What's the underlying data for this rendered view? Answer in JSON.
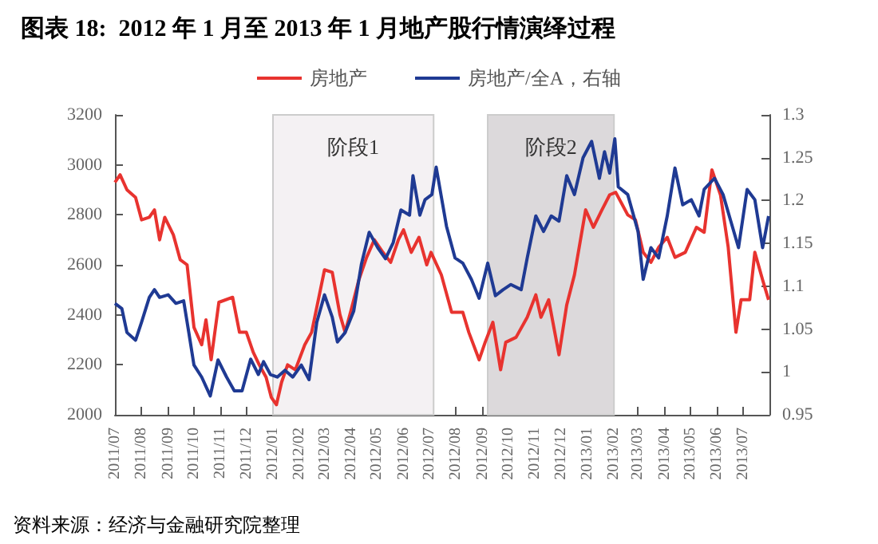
{
  "chart_data": {
    "type": "line",
    "title": "图表 18:  2012 年 1 月至 2013 年 1 月地产股行情演绎过程",
    "annotations": [
      "资料来源：经济与金融研究院整理"
    ],
    "legend": "top",
    "grid": false,
    "marker": "none",
    "line_style": "solid",
    "xlim": [
      "2011-07-01",
      "2013-08-01"
    ],
    "xticks": [
      {
        "value": "2011-07-01",
        "label": "2011/07"
      },
      {
        "value": "2011-08-01",
        "label": "2011/08"
      },
      {
        "value": "2011-09-01",
        "label": "2011/09"
      },
      {
        "value": "2011-10-01",
        "label": "2011/10"
      },
      {
        "value": "2011-11-01",
        "label": "2011/11"
      },
      {
        "value": "2011-12-01",
        "label": "2011/12"
      },
      {
        "value": "2012-01-01",
        "label": "2012/01"
      },
      {
        "value": "2012-02-01",
        "label": "2012/02"
      },
      {
        "value": "2012-03-01",
        "label": "2012/03"
      },
      {
        "value": "2012-04-01",
        "label": "2012/04"
      },
      {
        "value": "2012-05-01",
        "label": "2012/05"
      },
      {
        "value": "2012-06-01",
        "label": "2012/06"
      },
      {
        "value": "2012-07-01",
        "label": "2012/07"
      },
      {
        "value": "2012-08-01",
        "label": "2012/08"
      },
      {
        "value": "2012-09-01",
        "label": "2012/09"
      },
      {
        "value": "2012-10-01",
        "label": "2012/10"
      },
      {
        "value": "2012-11-01",
        "label": "2012/11"
      },
      {
        "value": "2012-12-01",
        "label": "2012/12"
      },
      {
        "value": "2013-01-01",
        "label": "2013/01"
      },
      {
        "value": "2013-02-01",
        "label": "2013/02"
      },
      {
        "value": "2013-03-01",
        "label": "2013/03"
      },
      {
        "value": "2013-04-01",
        "label": "2013/04"
      },
      {
        "value": "2013-05-01",
        "label": "2013/05"
      },
      {
        "value": "2013-06-01",
        "label": "2013/06"
      },
      {
        "value": "2013-07-01",
        "label": "2013/07"
      }
    ],
    "ylim": [
      2000,
      3200
    ],
    "yticks": [
      2000,
      2200,
      2400,
      2600,
      2800,
      3000,
      3200
    ],
    "y2lim": [
      0.95,
      1.3
    ],
    "y2ticks": [
      0.95,
      1,
      1.05,
      1.1,
      1.15,
      1.2,
      1.25,
      1.3
    ],
    "bands": [
      {
        "axis": "x",
        "from": "2012-01-01",
        "to": "2012-07-06",
        "label": "阶段1",
        "color": "#f4f1f3"
      },
      {
        "axis": "x",
        "from": "2012-09-07",
        "to": "2013-02-01",
        "label": "阶段2",
        "color": "#dcd9db"
      }
    ],
    "series": [
      {
        "name": "房地产",
        "color": "#e8332f",
        "x": [
          "2011-07-01",
          "2011-07-07",
          "2011-07-15",
          "2011-07-25",
          "2011-08-01",
          "2011-08-10",
          "2011-08-16",
          "2011-08-22",
          "2011-08-28",
          "2011-09-07",
          "2011-09-15",
          "2011-09-23",
          "2011-10-01",
          "2011-10-10",
          "2011-10-15",
          "2011-10-21",
          "2011-10-30",
          "2011-11-15",
          "2011-11-23",
          "2011-12-01",
          "2011-12-09",
          "2011-12-16",
          "2011-12-24",
          "2011-12-30",
          "2012-01-05",
          "2012-01-11",
          "2012-01-18",
          "2012-01-27",
          "2012-02-07",
          "2012-02-15",
          "2012-02-24",
          "2012-03-01",
          "2012-03-10",
          "2012-03-19",
          "2012-03-25",
          "2012-04-01",
          "2012-04-10",
          "2012-04-19",
          "2012-04-28",
          "2012-05-08",
          "2012-05-17",
          "2012-05-26",
          "2012-06-01",
          "2012-06-10",
          "2012-06-19",
          "2012-06-28",
          "2012-07-03",
          "2012-07-15",
          "2012-07-27",
          "2012-08-09",
          "2012-08-16",
          "2012-08-28",
          "2012-09-04",
          "2012-09-13",
          "2012-09-22",
          "2012-09-28",
          "2012-10-10",
          "2012-10-23",
          "2012-11-02",
          "2012-11-08",
          "2012-11-17",
          "2012-11-29",
          "2012-12-08",
          "2012-12-17",
          "2012-12-30",
          "2013-01-08",
          "2013-01-18",
          "2013-01-27",
          "2013-02-03",
          "2013-02-17",
          "2013-02-26",
          "2013-03-07",
          "2013-03-16",
          "2013-03-25",
          "2013-04-04",
          "2013-04-13",
          "2013-04-25",
          "2013-05-08",
          "2013-05-17",
          "2013-05-26",
          "2013-06-05",
          "2013-06-14",
          "2013-06-23",
          "2013-06-29",
          "2013-07-09",
          "2013-07-15",
          "2013-07-24",
          "2013-07-31"
        ],
        "values": [
          2930,
          2960,
          2900,
          2870,
          2780,
          2790,
          2820,
          2700,
          2790,
          2720,
          2620,
          2600,
          2350,
          2280,
          2380,
          2220,
          2450,
          2470,
          2330,
          2330,
          2250,
          2200,
          2150,
          2070,
          2040,
          2130,
          2200,
          2180,
          2280,
          2330,
          2480,
          2580,
          2570,
          2400,
          2330,
          2420,
          2540,
          2630,
          2700,
          2650,
          2610,
          2700,
          2740,
          2650,
          2710,
          2600,
          2650,
          2560,
          2410,
          2410,
          2330,
          2220,
          2290,
          2370,
          2180,
          2290,
          2310,
          2390,
          2480,
          2390,
          2460,
          2240,
          2440,
          2560,
          2820,
          2750,
          2820,
          2880,
          2890,
          2800,
          2780,
          2650,
          2610,
          2670,
          2710,
          2630,
          2650,
          2750,
          2730,
          2980,
          2880,
          2670,
          2330,
          2460,
          2460,
          2650,
          2540,
          2460
        ]
      },
      {
        "name": "房地产/全A，右轴",
        "color": "#1f3a93",
        "axis": "y2",
        "x": [
          "2011-07-01",
          "2011-07-09",
          "2011-07-15",
          "2011-07-25",
          "2011-08-01",
          "2011-08-10",
          "2011-08-16",
          "2011-08-22",
          "2011-09-01",
          "2011-09-10",
          "2011-09-19",
          "2011-09-25",
          "2011-10-01",
          "2011-10-10",
          "2011-10-20",
          "2011-10-29",
          "2011-11-08",
          "2011-11-17",
          "2011-11-26",
          "2011-12-06",
          "2011-12-15",
          "2011-12-21",
          "2011-12-29",
          "2012-01-06",
          "2012-01-15",
          "2012-01-24",
          "2012-02-03",
          "2012-02-12",
          "2012-02-21",
          "2012-03-01",
          "2012-03-10",
          "2012-03-16",
          "2012-03-25",
          "2012-04-04",
          "2012-04-13",
          "2012-04-22",
          "2012-05-02",
          "2012-05-11",
          "2012-05-20",
          "2012-05-29",
          "2012-06-08",
          "2012-06-12",
          "2012-06-20",
          "2012-06-26",
          "2012-07-04",
          "2012-07-09",
          "2012-07-21",
          "2012-07-31",
          "2012-08-09",
          "2012-08-19",
          "2012-08-28",
          "2012-09-07",
          "2012-09-16",
          "2012-09-25",
          "2012-10-04",
          "2012-10-16",
          "2012-10-23",
          "2012-11-02",
          "2012-11-11",
          "2012-11-20",
          "2012-11-29",
          "2012-12-08",
          "2012-12-17",
          "2012-12-27",
          "2013-01-06",
          "2013-01-15",
          "2013-01-21",
          "2013-01-27",
          "2013-02-02",
          "2013-02-06",
          "2013-02-17",
          "2013-03-01",
          "2013-03-07",
          "2013-03-16",
          "2013-03-25",
          "2013-04-04",
          "2013-04-13",
          "2013-04-22",
          "2013-05-02",
          "2013-05-11",
          "2013-05-17",
          "2013-05-29",
          "2013-06-08",
          "2013-06-17",
          "2013-06-26",
          "2013-07-06",
          "2013-07-15",
          "2013-07-24",
          "2013-07-31"
        ],
        "values": [
          1.08,
          1.074,
          1.046,
          1.037,
          1.058,
          1.087,
          1.096,
          1.087,
          1.09,
          1.08,
          1.083,
          1.046,
          1.008,
          0.994,
          0.972,
          1.014,
          0.994,
          0.978,
          0.978,
          1.015,
          0.997,
          1.012,
          0.997,
          0.994,
          1.002,
          0.994,
          1.008,
          0.991,
          1.058,
          1.09,
          1.064,
          1.035,
          1.046,
          1.071,
          1.126,
          1.163,
          1.145,
          1.132,
          1.151,
          1.189,
          1.183,
          1.229,
          1.183,
          1.201,
          1.207,
          1.239,
          1.17,
          1.133,
          1.127,
          1.108,
          1.086,
          1.127,
          1.089,
          1.096,
          1.102,
          1.096,
          1.133,
          1.182,
          1.164,
          1.182,
          1.176,
          1.229,
          1.207,
          1.25,
          1.269,
          1.226,
          1.257,
          1.232,
          1.272,
          1.216,
          1.207,
          1.164,
          1.108,
          1.145,
          1.133,
          1.182,
          1.238,
          1.195,
          1.201,
          1.182,
          1.213,
          1.226,
          1.207,
          1.176,
          1.145,
          1.213,
          1.201,
          1.145,
          1.182
        ]
      }
    ]
  }
}
